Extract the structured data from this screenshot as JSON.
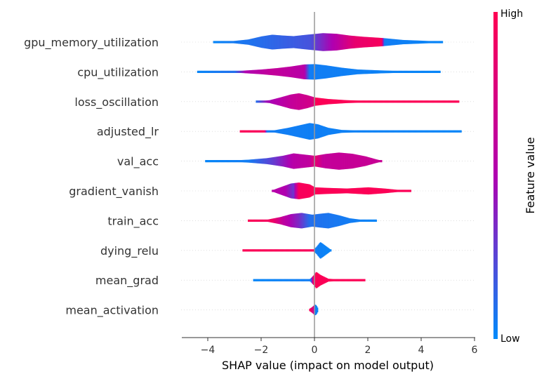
{
  "chart_data": {
    "type": "violin",
    "title": "",
    "xlabel": "SHAP value (impact on model output)",
    "xlim": [
      -5,
      6
    ],
    "xticks": [
      -4,
      -2,
      0,
      2,
      4,
      6
    ],
    "xtick_labels": [
      "−4",
      "−2",
      "0",
      "2",
      "4",
      "6"
    ],
    "zero_line": 0,
    "grid": false,
    "colorbar": {
      "title": "Feature value",
      "high_label": "High",
      "low_label": "Low",
      "low_color": "#008bfb",
      "mid_color": "#b000b0",
      "high_color": "#ff0052"
    },
    "features": [
      {
        "name": "gpu_memory_utilization",
        "range": [
          -3.8,
          4.8
        ],
        "density": [
          [
            -3.8,
            0.02
          ],
          [
            -3.2,
            0.06
          ],
          [
            -2.5,
            0.22
          ],
          [
            -2.0,
            0.48
          ],
          [
            -1.6,
            0.62
          ],
          [
            -1.2,
            0.55
          ],
          [
            -0.8,
            0.5
          ],
          [
            -0.3,
            0.62
          ],
          [
            0.3,
            0.75
          ],
          [
            0.8,
            0.7
          ],
          [
            1.3,
            0.55
          ],
          [
            1.8,
            0.45
          ],
          [
            2.5,
            0.35
          ],
          [
            3.3,
            0.18
          ],
          [
            4.0,
            0.12
          ],
          [
            4.8,
            0.04
          ]
        ],
        "color": [
          [
            -3.8,
            0.02
          ],
          [
            -0.2,
            0.2
          ],
          [
            0.8,
            0.55
          ],
          [
            1.5,
            0.85
          ],
          [
            2.5,
            0.95
          ],
          [
            2.6,
            0.05
          ],
          [
            4.8,
            0.02
          ]
        ]
      },
      {
        "name": "cpu_utilization",
        "range": [
          -4.4,
          4.7
        ],
        "density": [
          [
            -4.4,
            0.01
          ],
          [
            -3.5,
            0.04
          ],
          [
            -2.7,
            0.1
          ],
          [
            -2.0,
            0.2
          ],
          [
            -1.4,
            0.32
          ],
          [
            -0.9,
            0.45
          ],
          [
            -0.4,
            0.62
          ],
          [
            0.0,
            0.65
          ],
          [
            0.4,
            0.55
          ],
          [
            1.0,
            0.35
          ],
          [
            1.6,
            0.2
          ],
          [
            2.5,
            0.12
          ],
          [
            3.5,
            0.06
          ],
          [
            4.7,
            0.02
          ]
        ],
        "color": [
          [
            -4.4,
            0.02
          ],
          [
            -3.0,
            0.1
          ],
          [
            -2.6,
            0.5
          ],
          [
            -1.6,
            0.62
          ],
          [
            -0.4,
            0.55
          ],
          [
            -0.2,
            0.05
          ],
          [
            4.7,
            0.02
          ]
        ]
      },
      {
        "name": "loss_oscillation",
        "range": [
          -2.2,
          5.4
        ],
        "density": [
          [
            -2.2,
            0.03
          ],
          [
            -1.7,
            0.12
          ],
          [
            -1.3,
            0.35
          ],
          [
            -0.9,
            0.6
          ],
          [
            -0.6,
            0.7
          ],
          [
            -0.3,
            0.55
          ],
          [
            0.0,
            0.35
          ],
          [
            0.5,
            0.22
          ],
          [
            1.2,
            0.12
          ],
          [
            2.0,
            0.07
          ],
          [
            3.0,
            0.05
          ],
          [
            4.2,
            0.04
          ],
          [
            5.4,
            0.02
          ]
        ],
        "color": [
          [
            -2.2,
            0.1
          ],
          [
            -1.8,
            0.45
          ],
          [
            -0.9,
            0.62
          ],
          [
            -0.1,
            0.72
          ],
          [
            0.0,
            0.98
          ],
          [
            5.4,
            0.98
          ]
        ]
      },
      {
        "name": "adjusted_lr",
        "range": [
          -2.8,
          5.5
        ],
        "density": [
          [
            -2.8,
            0.02
          ],
          [
            -2.0,
            0.04
          ],
          [
            -1.5,
            0.1
          ],
          [
            -1.0,
            0.3
          ],
          [
            -0.5,
            0.55
          ],
          [
            -0.2,
            0.7
          ],
          [
            0.1,
            0.6
          ],
          [
            0.5,
            0.3
          ],
          [
            1.0,
            0.12
          ],
          [
            2.0,
            0.06
          ],
          [
            3.5,
            0.04
          ],
          [
            5.5,
            0.02
          ]
        ],
        "color": [
          [
            -2.8,
            0.98
          ],
          [
            -1.9,
            0.95
          ],
          [
            -1.8,
            0.05
          ],
          [
            5.5,
            0.02
          ]
        ]
      },
      {
        "name": "val_acc",
        "range": [
          -4.1,
          2.5
        ],
        "density": [
          [
            -4.1,
            0.01
          ],
          [
            -3.2,
            0.05
          ],
          [
            -2.5,
            0.12
          ],
          [
            -1.8,
            0.25
          ],
          [
            -1.2,
            0.45
          ],
          [
            -0.8,
            0.65
          ],
          [
            -0.4,
            0.55
          ],
          [
            0.0,
            0.45
          ],
          [
            0.4,
            0.6
          ],
          [
            0.9,
            0.72
          ],
          [
            1.4,
            0.62
          ],
          [
            1.9,
            0.4
          ],
          [
            2.3,
            0.15
          ],
          [
            2.5,
            0.04
          ]
        ],
        "color": [
          [
            -4.1,
            0.02
          ],
          [
            -2.5,
            0.05
          ],
          [
            -1.5,
            0.3
          ],
          [
            -0.8,
            0.55
          ],
          [
            -0.2,
            0.6
          ],
          [
            0.0,
            0.85
          ],
          [
            0.3,
            0.62
          ],
          [
            2.5,
            0.65
          ]
        ]
      },
      {
        "name": "gradient_vanish",
        "range": [
          -1.6,
          3.6
        ],
        "density": [
          [
            -1.6,
            0.05
          ],
          [
            -1.3,
            0.3
          ],
          [
            -0.9,
            0.62
          ],
          [
            -0.6,
            0.7
          ],
          [
            -0.2,
            0.55
          ],
          [
            0.0,
            0.3
          ],
          [
            0.5,
            0.25
          ],
          [
            1.2,
            0.2
          ],
          [
            2.0,
            0.3
          ],
          [
            2.6,
            0.2
          ],
          [
            3.2,
            0.07
          ],
          [
            3.6,
            0.02
          ]
        ],
        "color": [
          [
            -1.6,
            0.55
          ],
          [
            -1.1,
            0.5
          ],
          [
            -0.8,
            0.3
          ],
          [
            -0.6,
            0.95
          ],
          [
            0.0,
            0.98
          ],
          [
            3.6,
            0.98
          ]
        ]
      },
      {
        "name": "train_acc",
        "range": [
          -2.5,
          2.3
        ],
        "density": [
          [
            -2.5,
            0.02
          ],
          [
            -1.8,
            0.08
          ],
          [
            -1.3,
            0.3
          ],
          [
            -0.9,
            0.55
          ],
          [
            -0.5,
            0.65
          ],
          [
            -0.1,
            0.5
          ],
          [
            0.2,
            0.58
          ],
          [
            0.5,
            0.65
          ],
          [
            0.9,
            0.45
          ],
          [
            1.3,
            0.2
          ],
          [
            1.8,
            0.06
          ],
          [
            2.3,
            0.02
          ]
        ],
        "color": [
          [
            -2.5,
            0.98
          ],
          [
            -1.6,
            0.92
          ],
          [
            -1.2,
            0.6
          ],
          [
            -0.6,
            0.35
          ],
          [
            -0.2,
            0.1
          ],
          [
            2.3,
            0.02
          ]
        ]
      },
      {
        "name": "dying_relu",
        "range": [
          -2.7,
          0.6
        ],
        "density": [
          [
            -2.7,
            0.02
          ],
          [
            -1.8,
            0.03
          ],
          [
            -0.6,
            0.03
          ],
          [
            -0.05,
            0.08
          ],
          [
            0.05,
            0.28
          ],
          [
            0.2,
            0.7
          ],
          [
            0.3,
            0.55
          ],
          [
            0.45,
            0.3
          ],
          [
            0.6,
            0.05
          ]
        ],
        "color": [
          [
            -2.7,
            0.98
          ],
          [
            -0.05,
            0.95
          ],
          [
            0.0,
            0.05
          ],
          [
            0.6,
            0.02
          ]
        ]
      },
      {
        "name": "mean_grad",
        "range": [
          -2.3,
          1.9
        ],
        "density": [
          [
            -2.3,
            0.02
          ],
          [
            -1.0,
            0.03
          ],
          [
            -0.2,
            0.06
          ],
          [
            -0.05,
            0.4
          ],
          [
            0.05,
            0.7
          ],
          [
            0.2,
            0.45
          ],
          [
            0.5,
            0.12
          ],
          [
            1.0,
            0.05
          ],
          [
            1.9,
            0.02
          ]
        ],
        "color": [
          [
            -2.3,
            0.02
          ],
          [
            -0.15,
            0.05
          ],
          [
            -0.05,
            0.98
          ],
          [
            1.9,
            0.98
          ]
        ]
      },
      {
        "name": "mean_activation",
        "range": [
          -0.2,
          0.1
        ],
        "density": [
          [
            -0.2,
            0.1
          ],
          [
            -0.1,
            0.25
          ],
          [
            0.0,
            0.45
          ],
          [
            0.05,
            0.4
          ],
          [
            0.1,
            0.2
          ]
        ],
        "color": [
          [
            -0.2,
            0.98
          ],
          [
            -0.05,
            0.7
          ],
          [
            0.0,
            0.05
          ],
          [
            0.1,
            0.02
          ]
        ]
      }
    ]
  }
}
